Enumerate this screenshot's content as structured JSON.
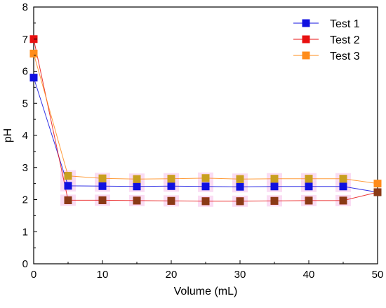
{
  "chart_data": {
    "type": "line",
    "title": "",
    "xlabel": "Volume (mL)",
    "ylabel": "pH",
    "xlim": [
      0,
      50
    ],
    "ylim": [
      0,
      8
    ],
    "x_ticks": [
      0,
      10,
      20,
      30,
      40,
      50
    ],
    "y_ticks": [
      0,
      1,
      2,
      3,
      4,
      5,
      6,
      7,
      8
    ],
    "grid": false,
    "legend_position": "top-right",
    "x": [
      0,
      5,
      10,
      15,
      20,
      25,
      30,
      35,
      40,
      45,
      50
    ],
    "series": [
      {
        "name": "Test 1",
        "color": "#1010e0",
        "values": [
          5.8,
          2.43,
          2.42,
          2.41,
          2.42,
          2.41,
          2.4,
          2.41,
          2.41,
          2.41,
          2.23
        ]
      },
      {
        "name": "Test 2",
        "color": "#e81010",
        "values": [
          7.0,
          1.98,
          1.98,
          1.97,
          1.96,
          1.95,
          1.95,
          1.96,
          1.97,
          1.97,
          2.23
        ]
      },
      {
        "name": "Test 3",
        "color": "#ff8c1a",
        "values": [
          6.55,
          2.74,
          2.66,
          2.64,
          2.65,
          2.67,
          2.64,
          2.65,
          2.65,
          2.65,
          2.5
        ]
      }
    ]
  }
}
